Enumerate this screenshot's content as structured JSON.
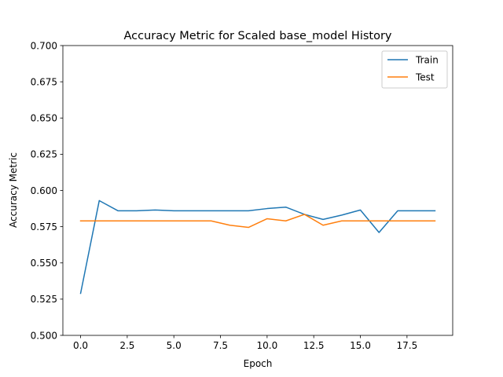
{
  "chart_data": {
    "type": "line",
    "title": "Accuracy Metric for Scaled base_model History",
    "xlabel": "Epoch",
    "ylabel": "Accuracy Metric",
    "xlim": [
      -0.95,
      19.95
    ],
    "ylim": [
      0.5,
      0.7
    ],
    "xticks": [
      0.0,
      2.5,
      5.0,
      7.5,
      10.0,
      12.5,
      15.0,
      17.5
    ],
    "xtick_labels": [
      "0.0",
      "2.5",
      "5.0",
      "7.5",
      "10.0",
      "12.5",
      "15.0",
      "17.5"
    ],
    "yticks": [
      0.5,
      0.525,
      0.55,
      0.575,
      0.6,
      0.625,
      0.65,
      0.675,
      0.7
    ],
    "ytick_labels": [
      "0.500",
      "0.525",
      "0.550",
      "0.575",
      "0.600",
      "0.625",
      "0.650",
      "0.675",
      "0.700"
    ],
    "grid": false,
    "legend_position": "top-right",
    "x": [
      0,
      1,
      2,
      3,
      4,
      5,
      6,
      7,
      8,
      9,
      10,
      11,
      12,
      13,
      14,
      15,
      16,
      17,
      18,
      19
    ],
    "series": [
      {
        "name": "Train",
        "color": "#1f77b4",
        "values": [
          0.529,
          0.593,
          0.586,
          0.586,
          0.5865,
          0.586,
          0.586,
          0.586,
          0.586,
          0.586,
          0.5875,
          0.5885,
          0.5835,
          0.58,
          0.583,
          0.5865,
          0.571,
          0.586,
          0.586,
          0.586
        ]
      },
      {
        "name": "Test",
        "color": "#ff7f0e",
        "values": [
          0.579,
          0.579,
          0.579,
          0.579,
          0.579,
          0.579,
          0.579,
          0.579,
          0.576,
          0.5745,
          0.5805,
          0.579,
          0.5835,
          0.576,
          0.579,
          0.579,
          0.579,
          0.579,
          0.579,
          0.579
        ]
      }
    ]
  }
}
